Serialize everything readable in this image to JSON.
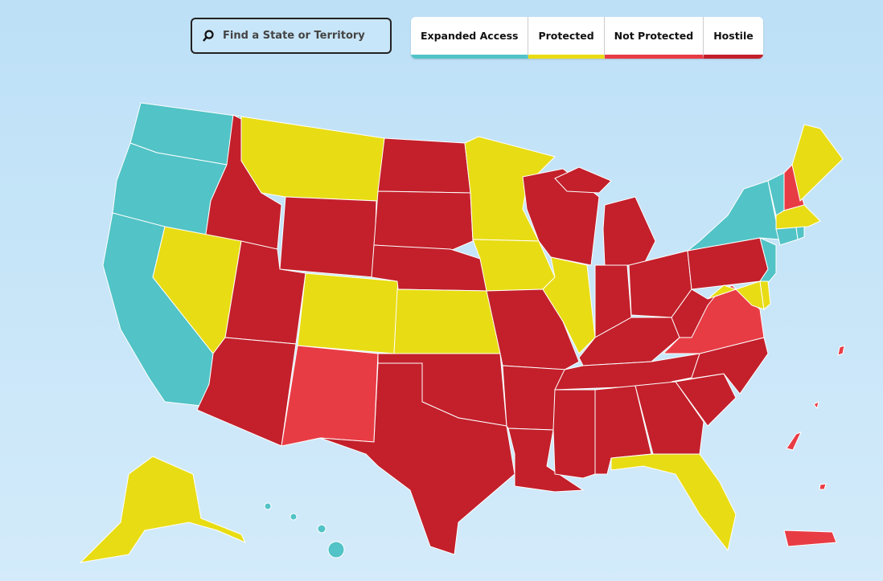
{
  "search": {
    "placeholder": "Find a State or Territory"
  },
  "legend": [
    "Expanded Access",
    "Protected",
    "Not Protected",
    "Hostile"
  ]
}
